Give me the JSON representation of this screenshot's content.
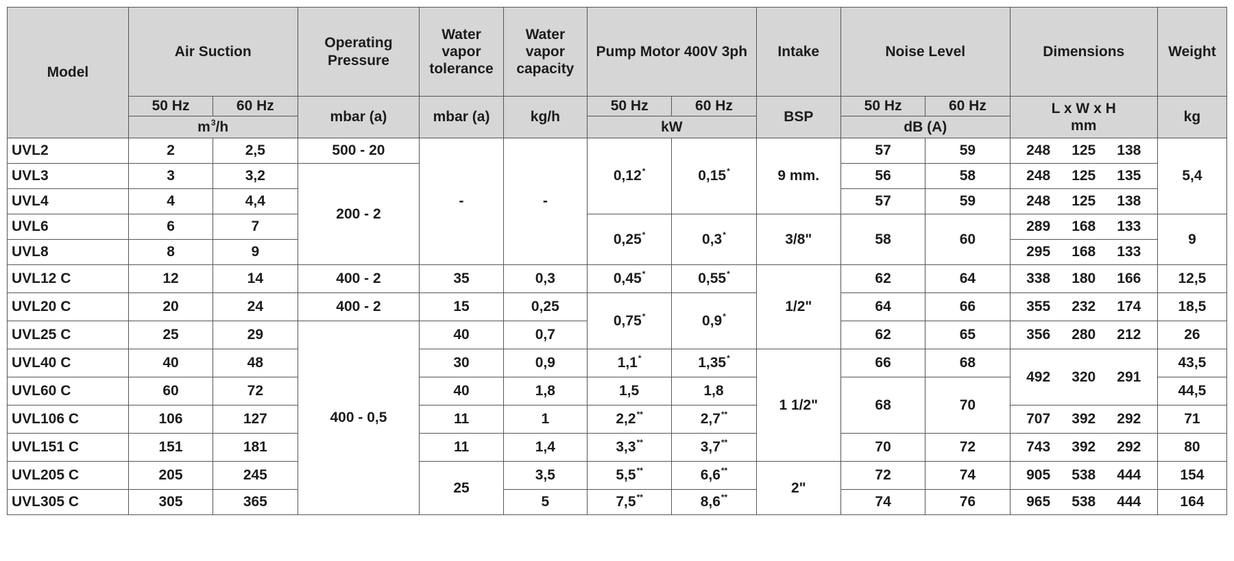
{
  "headers": {
    "model": "Model",
    "air_suction": "Air Suction",
    "operating_pressure": "Operating Pressure",
    "water_vapor_tolerance": "Water vapor tolerance",
    "water_vapor_capacity": "Water vapor capacity",
    "pump_motor": "Pump Motor 400V 3ph",
    "intake": "Intake",
    "noise_level": "Noise Level",
    "dimensions": "Dimensions",
    "weight": "Weight",
    "hz50": "50 Hz",
    "hz60": "60 Hz",
    "dims_sub": "L x W x H",
    "unit_air_base": "m",
    "unit_air_exp": "3",
    "unit_air_tail": "/h",
    "unit_pressure": "mbar (a)",
    "unit_tolerance": "mbar (a)",
    "unit_capacity": "kg/h",
    "unit_motor": "kW",
    "unit_intake": "BSP",
    "unit_noise": "dB (A)",
    "unit_dims": "mm",
    "unit_weight": "kg"
  },
  "models": [
    "UVL2",
    "UVL3",
    "UVL4",
    "UVL6",
    "UVL8",
    "UVL12 C",
    "UVL20 C",
    "UVL25 C",
    "UVL40 C",
    "UVL60 C",
    "UVL106 C",
    "UVL151 C",
    "UVL205 C",
    "UVL305 C"
  ],
  "air_50": [
    "2",
    "3",
    "4",
    "6",
    "8",
    "12",
    "20",
    "25",
    "40",
    "60",
    "106",
    "151",
    "205",
    "305"
  ],
  "air_60": [
    "2,5",
    "3,2",
    "4,4",
    "7",
    "9",
    "14",
    "24",
    "29",
    "48",
    "72",
    "127",
    "181",
    "245",
    "365"
  ],
  "pressure": [
    "500 - 20",
    "200 - 2",
    "400 - 2",
    "400 - 2",
    "400 - 0,5"
  ],
  "tolerance": [
    "-",
    "35",
    "15",
    "40",
    "30",
    "40",
    "11",
    "11",
    "25"
  ],
  "capacity": [
    "-",
    "0,3",
    "0,25",
    "0,7",
    "0,9",
    "1,8",
    "1",
    "1,4",
    "3,5",
    "5"
  ],
  "motor_50": [
    "0,12",
    "0,25",
    "0,45",
    "0,75",
    "1,1",
    "1,5",
    "2,2",
    "3,3",
    "5,5",
    "7,5"
  ],
  "motor_50_marks": [
    "*",
    "*",
    "*",
    "*",
    "*",
    "",
    "**",
    "**",
    "**",
    "**"
  ],
  "motor_60": [
    "0,15",
    "0,3",
    "0,55",
    "0,9",
    "1,35",
    "1,8",
    "2,7",
    "3,7",
    "6,6",
    "8,6"
  ],
  "motor_60_marks": [
    "*",
    "*",
    "*",
    "*",
    "*",
    "",
    "**",
    "**",
    "**",
    "**"
  ],
  "intake": [
    "9 mm.",
    "3/8\"",
    "1/2\"",
    "1 1/2\"",
    "2\""
  ],
  "noise_50": [
    "57",
    "56",
    "57",
    "58",
    "62",
    "64",
    "62",
    "66",
    "68",
    "70",
    "72",
    "74"
  ],
  "noise_60": [
    "59",
    "58",
    "59",
    "60",
    "64",
    "66",
    "65",
    "68",
    "70",
    "72",
    "74",
    "76"
  ],
  "dims": [
    [
      "248",
      "125",
      "138"
    ],
    [
      "248",
      "125",
      "135"
    ],
    [
      "248",
      "125",
      "138"
    ],
    [
      "289",
      "168",
      "133"
    ],
    [
      "295",
      "168",
      "133"
    ],
    [
      "338",
      "180",
      "166"
    ],
    [
      "355",
      "232",
      "174"
    ],
    [
      "356",
      "280",
      "212"
    ],
    [
      "492",
      "320",
      "291"
    ],
    [
      "707",
      "392",
      "292"
    ],
    [
      "743",
      "392",
      "292"
    ],
    [
      "905",
      "538",
      "444"
    ],
    [
      "965",
      "538",
      "444"
    ]
  ],
  "weight": [
    "5,4",
    "9",
    "12,5",
    "18,5",
    "26",
    "43,5",
    "44,5",
    "71",
    "80",
    "154",
    "164"
  ]
}
